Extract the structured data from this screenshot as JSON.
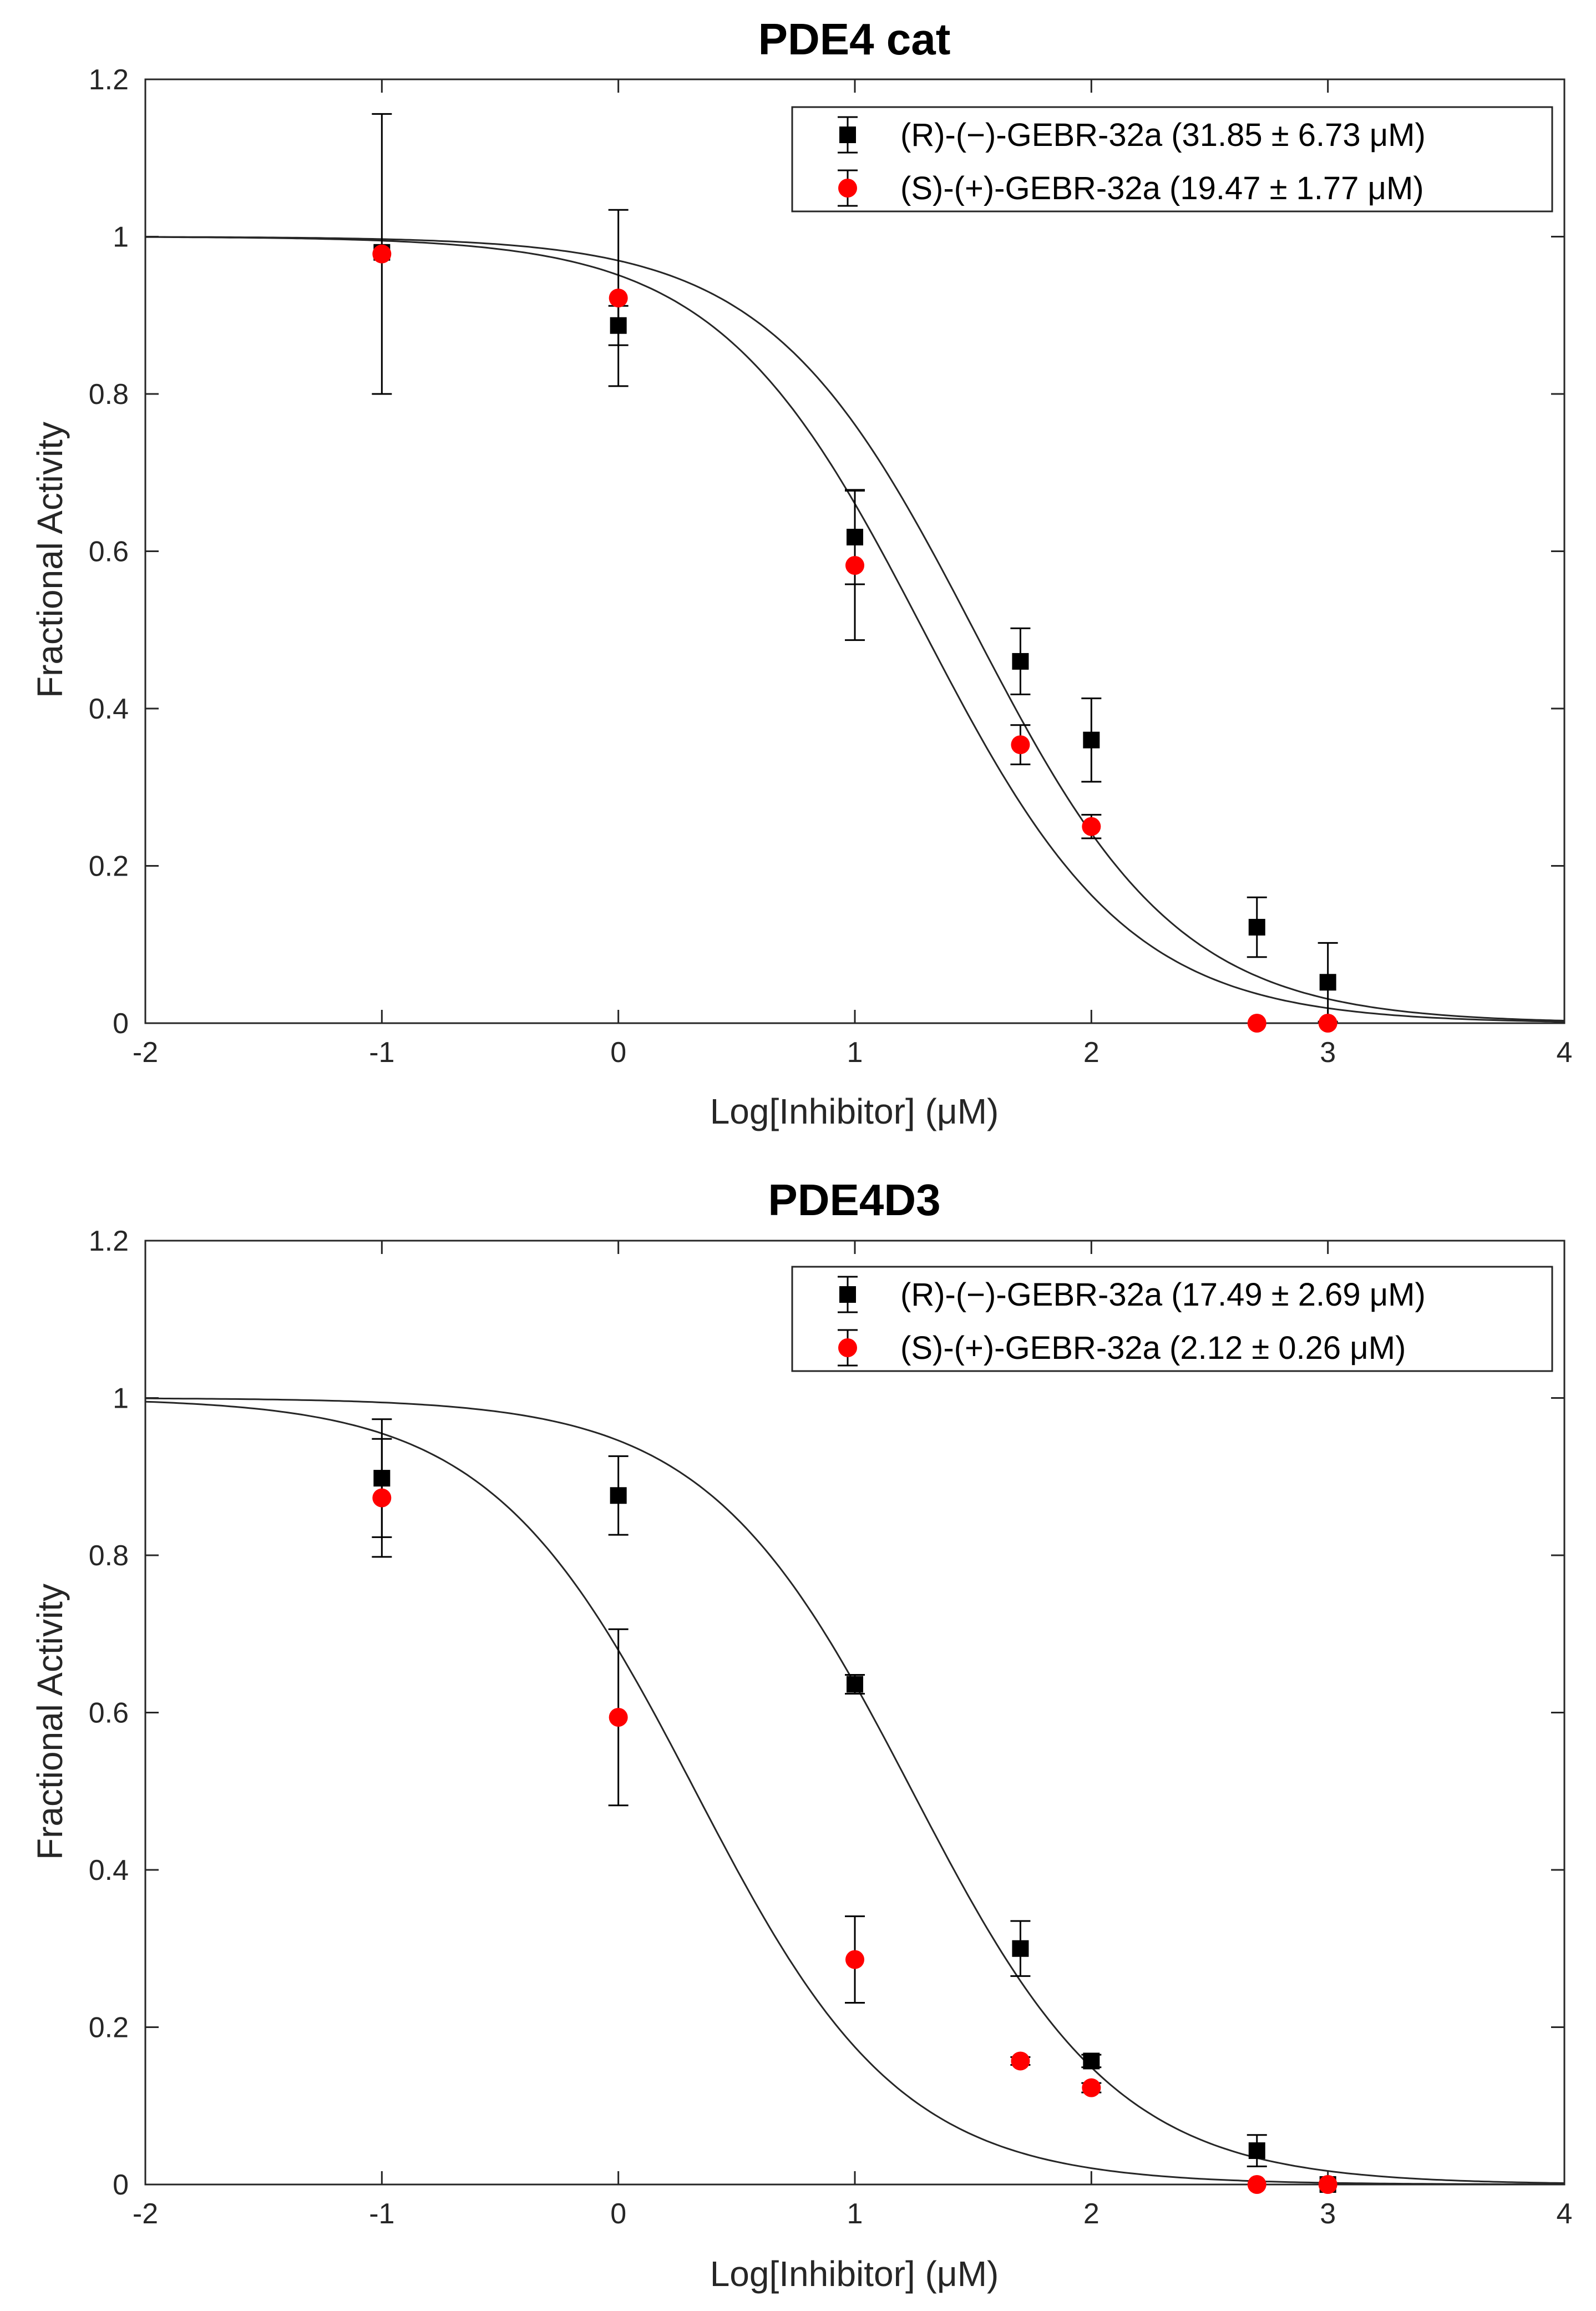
{
  "chart_data": [
    {
      "type": "scatter",
      "title": "PDE4 cat",
      "xlabel": "Log[Inhibitor] (μM)",
      "ylabel": "Fractional Activity",
      "xlim": [
        -2,
        4
      ],
      "ylim": [
        0,
        1.2
      ],
      "xticks": [
        -2,
        -1,
        0,
        1,
        2,
        3,
        4
      ],
      "yticks": [
        0,
        0.2,
        0.4,
        0.6,
        0.8,
        1,
        1.2
      ],
      "xtick_labels": [
        "-2",
        "-1",
        "0",
        "1",
        "2",
        "3",
        "4"
      ],
      "ytick_labels": [
        "0",
        "0.2",
        "0.4",
        "0.6",
        "0.8",
        "1",
        "1.2"
      ],
      "grid": false,
      "legend_position": "top-right",
      "series": [
        {
          "name": "(R)-(−)-GEBR-32a (31.85 ± 6.73 μM)",
          "marker": "square",
          "color": "#000000",
          "x": [
            -1,
            0,
            1,
            1.7,
            2,
            2.7,
            3
          ],
          "y": [
            0.98,
            0.887,
            0.618,
            0.46,
            0.36,
            0.122,
            0.052
          ],
          "err": [
            0,
            0.025,
            0.06,
            0.042,
            0.053,
            0.038,
            0.05
          ],
          "ic50_log": 1.503
        },
        {
          "name": "(S)-(+)-GEBR-32a (19.47 ± 1.77 μM)",
          "marker": "circle",
          "color": "#ff0000",
          "x": [
            -1,
            0,
            1,
            1.7,
            2,
            2.7,
            3
          ],
          "y": [
            0.978,
            0.922,
            0.582,
            0.354,
            0.25,
            0.0,
            0.0
          ],
          "err": [
            0.178,
            0.112,
            0.095,
            0.025,
            0.015,
            0,
            0
          ],
          "ic50_log": 1.289
        }
      ]
    },
    {
      "type": "scatter",
      "title": "PDE4D3",
      "xlabel": "Log[Inhibitor] (μM)",
      "ylabel": "Fractional Activity",
      "xlim": [
        -2,
        4
      ],
      "ylim": [
        0,
        1.2
      ],
      "xticks": [
        -2,
        -1,
        0,
        1,
        2,
        3,
        4
      ],
      "yticks": [
        0,
        0.2,
        0.4,
        0.6,
        0.8,
        1,
        1.2
      ],
      "xtick_labels": [
        "-2",
        "-1",
        "0",
        "1",
        "2",
        "3",
        "4"
      ],
      "ytick_labels": [
        "0",
        "0.2",
        "0.4",
        "0.6",
        "0.8",
        "1",
        "1.2"
      ],
      "grid": false,
      "legend_position": "top-right",
      "series": [
        {
          "name": "(R)-(−)-GEBR-32a (17.49 ± 2.69 μM)",
          "marker": "square",
          "color": "#000000",
          "x": [
            -1,
            0,
            1,
            1.7,
            2,
            2.7,
            3
          ],
          "y": [
            0.898,
            0.876,
            0.636,
            0.3,
            0.157,
            0.043,
            0.0
          ],
          "err": [
            0.075,
            0.05,
            0.012,
            0.035,
            0.008,
            0.02,
            0
          ],
          "ic50_log": 1.243
        },
        {
          "name": "(S)-(+)-GEBR-32a (2.12 ± 0.26 μM)",
          "marker": "circle",
          "color": "#ff0000",
          "x": [
            -1,
            0,
            1,
            1.7,
            2,
            2.7,
            3
          ],
          "y": [
            0.873,
            0.594,
            0.286,
            0.157,
            0.123,
            0.0,
            0.0
          ],
          "err": [
            0.075,
            0.112,
            0.055,
            0.005,
            0.006,
            0,
            0
          ],
          "ic50_log": 0.326
        }
      ]
    }
  ]
}
